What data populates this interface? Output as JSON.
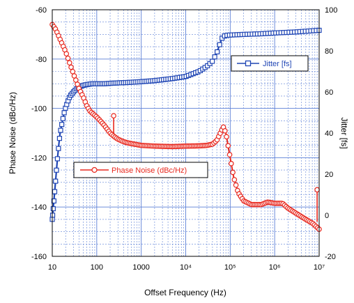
{
  "chart_data": {
    "type": "line",
    "title": "",
    "xlabel": "Offset Frequency (Hz)",
    "ylabel_left": "Phase Noise (dBc/Hz)",
    "ylabel_right": "Jitter [fs]",
    "xscale": "log",
    "xlim": [
      10,
      10000000
    ],
    "ylim_left": [
      -160,
      -60
    ],
    "ylim_right": [
      -20,
      100
    ],
    "grid": true,
    "x_tick_labels": [
      "10",
      "100",
      "1000",
      "10⁴",
      "10⁵",
      "10⁶",
      "10⁷"
    ],
    "x_tick_values": [
      10,
      100,
      1000,
      10000,
      100000,
      1000000,
      10000000
    ],
    "y_left_tick_labels": [
      "-60",
      "-80",
      "-100",
      "-120",
      "-140",
      "-160"
    ],
    "y_left_tick_values": [
      -60,
      -80,
      -100,
      -120,
      -140,
      -160
    ],
    "y_right_tick_labels": [
      "100",
      "80",
      "60",
      "40",
      "20",
      "0",
      "-20"
    ],
    "y_right_tick_values": [
      100,
      80,
      60,
      40,
      20,
      0,
      -20
    ],
    "colors": {
      "phase_noise": "#e8281e",
      "jitter": "#1f45b4",
      "grid": "#5b7fd6",
      "frame": "#000000"
    },
    "series": [
      {
        "name": "Jitter [fs]",
        "axis": "right",
        "marker": "square",
        "x": [
          10,
          11,
          12,
          13,
          14,
          15,
          17,
          19,
          22,
          25,
          30,
          35,
          40,
          50,
          60,
          80,
          100,
          150,
          200,
          300,
          500,
          1000,
          2000,
          5000,
          10000,
          20000,
          30000,
          40000,
          50000,
          60000,
          65000,
          70000,
          80000,
          100000,
          200000,
          500000,
          1000000,
          3000000,
          10000000
        ],
        "values": [
          -2,
          8,
          18,
          27,
          34,
          40,
          46,
          51,
          55,
          58,
          60,
          61.5,
          62.5,
          63.2,
          63.6,
          64,
          64,
          64,
          64.2,
          64.4,
          64.6,
          65,
          65.5,
          66.5,
          67.5,
          70,
          72.5,
          75,
          79,
          84,
          86,
          87,
          87.5,
          87.7,
          88,
          88.3,
          88.7,
          89.2,
          90
        ]
      },
      {
        "name": "Phase Noise (dBc/Hz)",
        "axis": "left",
        "marker": "circle",
        "x": [
          10,
          12,
          15,
          20,
          25,
          30,
          40,
          50,
          60,
          70,
          80,
          100,
          120,
          150,
          200,
          250,
          300,
          400,
          500,
          700,
          1000,
          2000,
          5000,
          10000,
          20000,
          30000,
          40000,
          50000,
          60000,
          70000,
          80000,
          100000,
          120000,
          150000,
          200000,
          300000,
          500000,
          700000,
          1000000,
          1500000,
          2000000,
          3000000,
          5000000,
          7000000,
          10000000
        ],
        "values": [
          -66,
          -68,
          -72,
          -77,
          -82,
          -86,
          -92,
          -95.5,
          -99,
          -101,
          -102,
          -103.5,
          -105,
          -107,
          -110,
          -111.5,
          -112.5,
          -113.5,
          -114,
          -114.5,
          -115,
          -115.3,
          -115.5,
          -115.3,
          -115.2,
          -115,
          -114.5,
          -113,
          -110,
          -107.5,
          -110,
          -120,
          -128,
          -134,
          -137.5,
          -139,
          -139,
          -138,
          -138.5,
          -138.5,
          -140.5,
          -142.5,
          -145,
          -146.5,
          -149
        ]
      }
    ],
    "spikes": [
      {
        "series": "Phase Noise (dBc/Hz)",
        "x": 240,
        "from": -110.5,
        "to": -103
      },
      {
        "series": "Phase Noise (dBc/Hz)",
        "x": 9000000,
        "from": -146,
        "to": -133
      }
    ],
    "legend": [
      {
        "label": "Jitter [fs]",
        "marker": "square",
        "placement": "upper-right"
      },
      {
        "label": "Phase Noise (dBc/Hz)",
        "marker": "circle",
        "placement": "lower-left"
      }
    ]
  }
}
